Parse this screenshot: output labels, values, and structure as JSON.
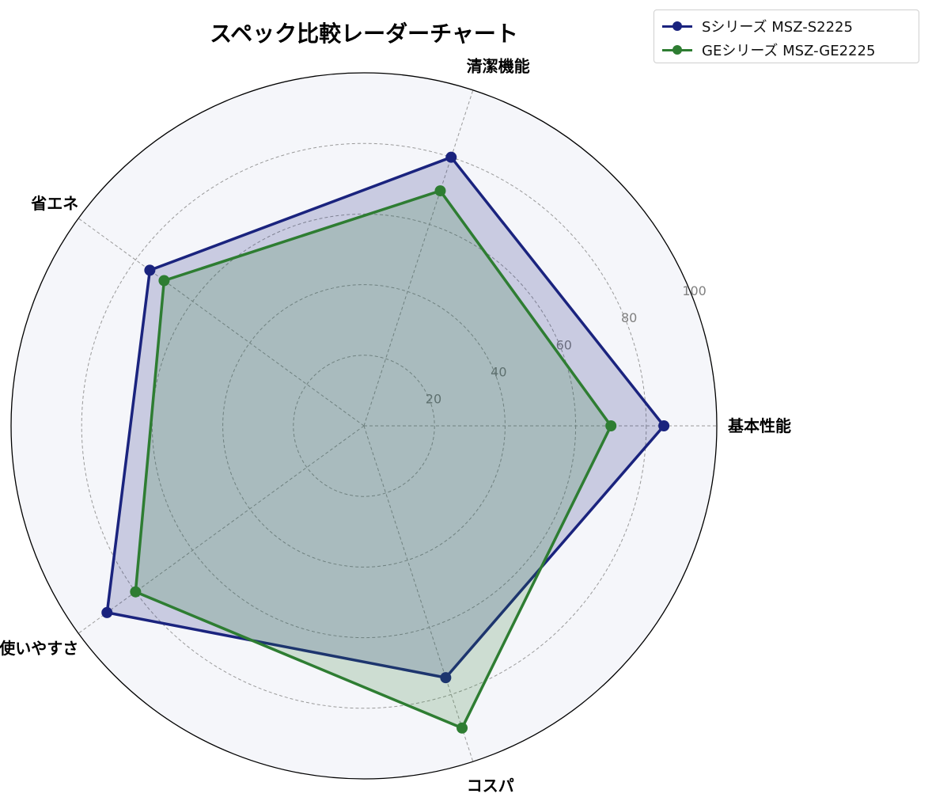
{
  "chart_data": {
    "type": "radar",
    "title": "スペック比較レーダーチャート",
    "axes": [
      "基本性能",
      "コスパ",
      "清潔機能",
      "省エネ",
      "使いやすさ"
    ],
    "axis_order_clockwise_from_right": [
      "基本性能",
      "清潔機能",
      "省エネ",
      "使いやすさ",
      "コスパ"
    ],
    "r_ticks": [
      "20",
      "40",
      "60",
      "80",
      "100"
    ],
    "r_range": [
      0,
      100
    ],
    "grid": true,
    "legend_position": "top-right",
    "background_color": "#f5f6fa",
    "series": [
      {
        "name": "Sシリーズ MSZ-S2225",
        "color": "#1a237e",
        "values": {
          "基本性能": 85,
          "清潔機能": 80,
          "省エネ": 75,
          "使いやすさ": 90,
          "コスパ": 75
        }
      },
      {
        "name": "GEシリーズ MSZ-GE2225",
        "color": "#2e7d32",
        "values": {
          "基本性能": 70,
          "清潔機能": 70,
          "省エネ": 70,
          "使いやすさ": 80,
          "コスパ": 90
        }
      }
    ]
  }
}
